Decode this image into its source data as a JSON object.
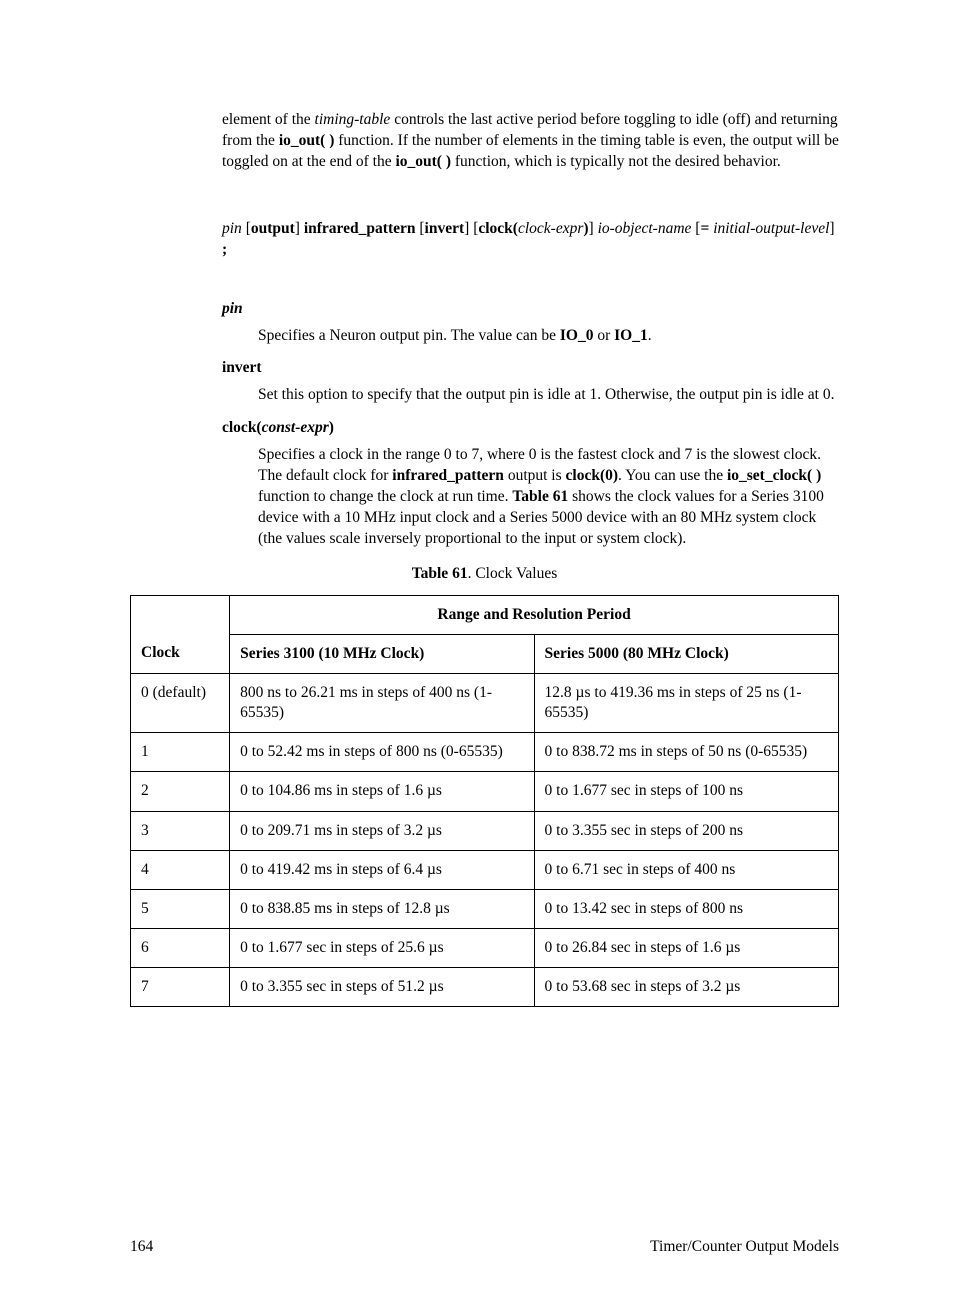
{
  "intro": {
    "text_parts": [
      "element of the ",
      "timing-table",
      " controls the last active period before toggling to idle (off) and returning from the ",
      "io_out( )",
      " function.  If the number of elements in the timing table is even, the output will be toggled on at the end of the ",
      "io_out( )",
      " function, which is typically not the desired behavior."
    ]
  },
  "syntax": {
    "parts": [
      "pin",
      " [",
      "output",
      "] ",
      "infrared_pattern",
      " [",
      "invert",
      "] [",
      "clock(",
      "clock-expr",
      ")",
      "] ",
      "io-object-name",
      " [",
      "= ",
      "initial-output-level",
      "] ",
      ";"
    ]
  },
  "terms": {
    "pin": {
      "label": "pin",
      "body_parts": [
        "Specifies a Neuron output pin.  The value can be ",
        "IO_0",
        " or ",
        "IO_1",
        "."
      ]
    },
    "invert": {
      "label": "invert",
      "body": "Set this option to specify that the output pin is idle at 1.  Otherwise, the output pin is idle at 0."
    },
    "clock": {
      "label_prefix": "clock(",
      "label_italic": "const-expr",
      "label_suffix": ")",
      "body_parts": [
        "Specifies a clock in the range 0 to 7, where 0 is the fastest clock and 7 is the slowest clock.  The default clock for ",
        "infrared_pattern",
        " output is ",
        "clock(0)",
        ".  You can use the ",
        "io_set_clock( )",
        " function to change the clock at run time.  ",
        "Table 61",
        " shows the clock values for a Series 3100 device with a 10 MHz input clock and a Series 5000 device with an 80 MHz system clock (the values scale inversely proportional to the input or system clock)."
      ]
    }
  },
  "table": {
    "caption_bold": "Table 61",
    "caption_rest": ". Clock Values",
    "header_top": "Range and Resolution Period",
    "header_clock": "Clock",
    "header_s3100": "Series 3100 (10 MHz Clock)",
    "header_s5000": "Series 5000 (80 MHz Clock)",
    "rows": [
      {
        "c": "0 (default)",
        "a": "800 ns to 26.21 ms in steps of 400 ns (1-65535)",
        "b": "12.8 µs to 419.36 ms in steps of 25 ns (1-65535)"
      },
      {
        "c": "1",
        "a": "0 to 52.42 ms in steps of 800 ns (0-65535)",
        "b": "0 to 838.72 ms in steps of 50 ns (0-65535)"
      },
      {
        "c": "2",
        "a": "0 to 104.86 ms in steps of 1.6 µs",
        "b": "0 to 1.677 sec in steps of 100 ns"
      },
      {
        "c": "3",
        "a": "0 to 209.71 ms in steps of 3.2 µs",
        "b": "0 to 3.355 sec in steps of 200 ns"
      },
      {
        "c": "4",
        "a": "0 to 419.42 ms in steps of 6.4 µs",
        "b": "0 to 6.71 sec in steps of 400 ns"
      },
      {
        "c": "5",
        "a": "0 to 838.85 ms in steps of 12.8 µs",
        "b": "0 to 13.42 sec in steps of 800 ns"
      },
      {
        "c": "6",
        "a": "0 to 1.677 sec in steps of 25.6 µs",
        "b": "0 to 26.84 sec in steps of 1.6 µs"
      },
      {
        "c": "7",
        "a": "0 to 3.355 sec in steps of 51.2 µs",
        "b": "0 to 53.68 sec in steps of 3.2 µs"
      }
    ]
  },
  "footer": {
    "page_number": "164",
    "section": "Timer/Counter Output Models"
  }
}
